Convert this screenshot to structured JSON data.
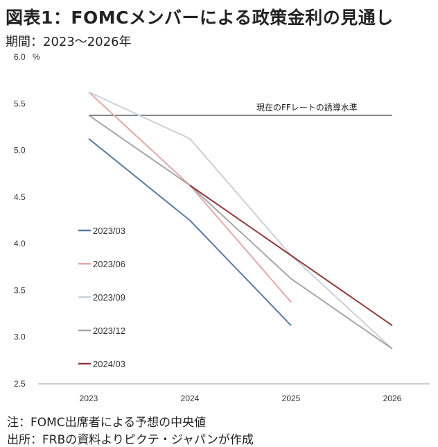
{
  "header": {
    "title": "図表1：FOMCメンバーによる政策金利の見通し",
    "subtitle": "期間：2023～2026年"
  },
  "footer": {
    "note": "注：FOMC出席者による予想の中央値",
    "source": "出所：FRBの資料よりピクテ・ジャパンが作成"
  },
  "chart_data": {
    "type": "line",
    "ylabel": "%",
    "ylim": [
      2.5,
      6.0
    ],
    "yticks": [
      "2.5",
      "3.0",
      "3.5",
      "4.0",
      "4.5",
      "5.0",
      "5.5",
      "6.0"
    ],
    "categories": [
      "2023",
      "2024",
      "2025",
      "2026"
    ],
    "grid": false,
    "legend_position": "left-center",
    "series": [
      {
        "name": "2023/03",
        "color": "#5b7aa3",
        "values": [
          5.125,
          4.25,
          3.125,
          null
        ]
      },
      {
        "name": "2023/06",
        "color": "#e3a8a8",
        "values": [
          5.625,
          4.625,
          3.375,
          null
        ]
      },
      {
        "name": "2023/09",
        "color": "#c9d0dd",
        "values": [
          5.625,
          5.125,
          3.875,
          2.875
        ]
      },
      {
        "name": "2023/12",
        "color": "#a6a6a6",
        "values": [
          5.375,
          4.625,
          3.625,
          2.875
        ]
      },
      {
        "name": "2024/03",
        "color": "#8e3a3a",
        "values": [
          null,
          4.625,
          3.875,
          3.125
        ]
      }
    ],
    "reference_line": {
      "value": 5.375,
      "label": "現在のFFレートの誘導水準"
    }
  }
}
